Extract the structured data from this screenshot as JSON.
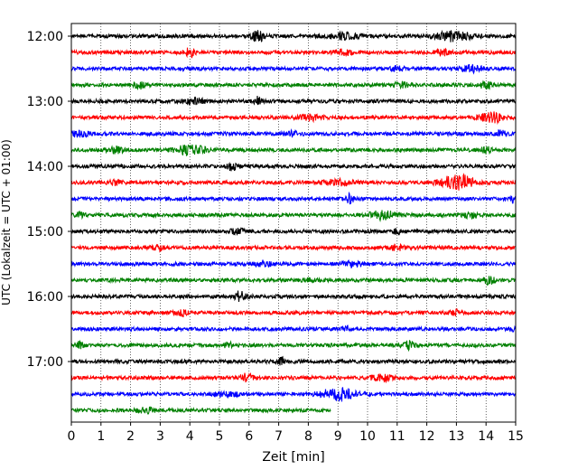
{
  "chart_data": {
    "type": "line",
    "title": "",
    "xlabel": "Zeit  [min]",
    "ylabel": "UTC (Lokalzeit = UTC + 01:00)",
    "xlim": [
      0,
      15
    ],
    "x_ticks": [
      "0",
      "1",
      "2",
      "3",
      "4",
      "5",
      "6",
      "7",
      "8",
      "9",
      "10",
      "11",
      "12",
      "13",
      "14",
      "15"
    ],
    "y_ticks": [
      "12:00",
      "13:00",
      "14:00",
      "15:00",
      "16:00",
      "17:00"
    ],
    "grid": "vertical dotted lines at each minute",
    "colors": [
      "#000000",
      "#ff0000",
      "#0000ff",
      "#008000"
    ],
    "series": [
      {
        "start": "12:00",
        "color": "#000000",
        "end_min": 15,
        "events": [
          [
            6.3,
            0.55,
            0.35
          ],
          [
            9.2,
            0.35,
            0.8
          ],
          [
            12.9,
            0.55,
            0.9
          ]
        ]
      },
      {
        "start": "12:15",
        "color": "#ff0000",
        "end_min": 15,
        "events": [
          [
            4.0,
            0.5,
            0.25
          ],
          [
            9.2,
            0.3,
            0.5
          ],
          [
            12.5,
            0.3,
            0.4
          ]
        ]
      },
      {
        "start": "12:30",
        "color": "#0000ff",
        "end_min": 15,
        "events": [
          [
            11.0,
            0.25,
            0.3
          ],
          [
            13.5,
            0.4,
            0.5
          ]
        ]
      },
      {
        "start": "12:45",
        "color": "#008000",
        "end_min": 15,
        "events": [
          [
            2.3,
            0.4,
            0.3
          ],
          [
            11.1,
            0.3,
            0.4
          ],
          [
            14.0,
            0.45,
            0.3
          ]
        ]
      },
      {
        "start": "13:00",
        "color": "#000000",
        "end_min": 15,
        "events": [
          [
            4.2,
            0.25,
            0.5
          ],
          [
            6.3,
            0.5,
            0.2
          ]
        ]
      },
      {
        "start": "13:15",
        "color": "#ff0000",
        "end_min": 15,
        "events": [
          [
            8.0,
            0.3,
            0.7
          ],
          [
            14.2,
            0.55,
            0.6
          ]
        ]
      },
      {
        "start": "13:30",
        "color": "#0000ff",
        "end_min": 15,
        "events": [
          [
            0.3,
            0.35,
            0.5
          ],
          [
            7.5,
            0.25,
            0.4
          ],
          [
            14.5,
            0.3,
            0.3
          ]
        ]
      },
      {
        "start": "13:45",
        "color": "#008000",
        "end_min": 15,
        "events": [
          [
            1.5,
            0.35,
            0.4
          ],
          [
            4.0,
            0.55,
            0.8
          ],
          [
            14.0,
            0.3,
            0.3
          ]
        ]
      },
      {
        "start": "14:00",
        "color": "#000000",
        "end_min": 15,
        "events": [
          [
            5.4,
            0.5,
            0.25
          ]
        ]
      },
      {
        "start": "14:15",
        "color": "#ff0000",
        "end_min": 15,
        "events": [
          [
            1.5,
            0.35,
            0.3
          ],
          [
            9.0,
            0.3,
            0.8
          ],
          [
            13.0,
            1.0,
            0.8
          ]
        ]
      },
      {
        "start": "14:30",
        "color": "#0000ff",
        "end_min": 15,
        "events": [
          [
            9.4,
            0.5,
            0.2
          ],
          [
            14.9,
            0.35,
            0.1
          ]
        ]
      },
      {
        "start": "14:45",
        "color": "#008000",
        "end_min": 15,
        "events": [
          [
            0.3,
            0.3,
            0.2
          ],
          [
            10.5,
            0.45,
            0.8
          ],
          [
            13.5,
            0.4,
            0.3
          ]
        ]
      },
      {
        "start": "15:00",
        "color": "#000000",
        "end_min": 15,
        "events": [
          [
            5.6,
            0.4,
            0.3
          ],
          [
            11.0,
            0.3,
            0.2
          ]
        ]
      },
      {
        "start": "15:15",
        "color": "#ff0000",
        "end_min": 15,
        "events": [
          [
            2.9,
            0.3,
            0.3
          ],
          [
            11.0,
            0.35,
            0.3
          ]
        ]
      },
      {
        "start": "15:30",
        "color": "#0000ff",
        "end_min": 15,
        "events": [
          [
            6.5,
            0.3,
            0.4
          ],
          [
            9.5,
            0.25,
            0.6
          ]
        ]
      },
      {
        "start": "15:45",
        "color": "#008000",
        "end_min": 15,
        "events": [
          [
            8.0,
            0.2,
            0.4
          ],
          [
            14.1,
            0.4,
            0.3
          ]
        ]
      },
      {
        "start": "16:00",
        "color": "#000000",
        "end_min": 15,
        "events": [
          [
            5.7,
            0.6,
            0.25
          ]
        ]
      },
      {
        "start": "16:15",
        "color": "#ff0000",
        "end_min": 15,
        "events": [
          [
            3.7,
            0.4,
            0.3
          ],
          [
            13.0,
            0.25,
            0.3
          ]
        ]
      },
      {
        "start": "16:30",
        "color": "#0000ff",
        "end_min": 15,
        "events": [
          [
            9.3,
            0.3,
            0.2
          ],
          [
            14.9,
            0.3,
            0.1
          ]
        ]
      },
      {
        "start": "16:45",
        "color": "#008000",
        "end_min": 15,
        "events": [
          [
            0.3,
            0.45,
            0.2
          ],
          [
            5.3,
            0.3,
            0.2
          ],
          [
            11.4,
            0.45,
            0.3
          ]
        ]
      },
      {
        "start": "17:00",
        "color": "#000000",
        "end_min": 15,
        "events": [
          [
            7.1,
            0.4,
            0.2
          ]
        ]
      },
      {
        "start": "17:15",
        "color": "#ff0000",
        "end_min": 15,
        "events": [
          [
            5.9,
            0.45,
            0.3
          ],
          [
            10.5,
            0.35,
            0.6
          ]
        ]
      },
      {
        "start": "17:30",
        "color": "#0000ff",
        "end_min": 15,
        "events": [
          [
            5.2,
            0.25,
            0.6
          ],
          [
            9.0,
            0.75,
            0.8
          ]
        ]
      },
      {
        "start": "17:45",
        "color": "#008000",
        "end_min": 8.75,
        "events": [
          [
            2.5,
            0.35,
            0.4
          ]
        ]
      }
    ]
  }
}
